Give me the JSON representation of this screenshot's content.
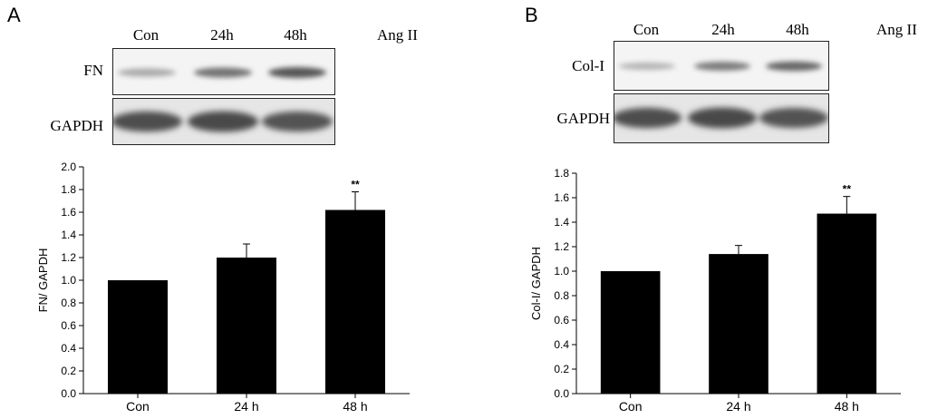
{
  "panels": [
    {
      "letter": "A",
      "treatment": "Ang II",
      "lanes": [
        "Con",
        "24h",
        "48h"
      ],
      "blots": [
        {
          "label": "FN",
          "band_intensity": [
            0.35,
            0.65,
            0.8
          ]
        },
        {
          "label": "GAPDH",
          "band_intensity": [
            0.85,
            0.88,
            0.82
          ]
        }
      ]
    },
    {
      "letter": "B",
      "treatment": "Ang II",
      "lanes": [
        "Con",
        "24h",
        "48h"
      ],
      "blots": [
        {
          "label": "Col-I",
          "band_intensity": [
            0.3,
            0.6,
            0.72
          ]
        },
        {
          "label": "GAPDH",
          "band_intensity": [
            0.85,
            0.88,
            0.82
          ]
        }
      ]
    }
  ],
  "chart_data": [
    {
      "type": "bar",
      "categories": [
        "Con",
        "24 h",
        "48 h"
      ],
      "values": [
        1.0,
        1.2,
        1.62
      ],
      "errors": [
        0.0,
        0.12,
        0.16
      ],
      "significance": [
        "",
        "",
        "**"
      ],
      "ylabel": "FN/ GAPDH",
      "xlabel": "",
      "title": "",
      "ylim": [
        0.0,
        2.0
      ],
      "yticks": [
        "0.0",
        "0.2",
        "0.4",
        "0.6",
        "0.8",
        "1.0",
        "1.2",
        "1.4",
        "1.6",
        "1.8",
        "2.0"
      ],
      "bar_color": "#000000",
      "grid": false
    },
    {
      "type": "bar",
      "categories": [
        "Con",
        "24 h",
        "48 h"
      ],
      "values": [
        1.0,
        1.14,
        1.47
      ],
      "errors": [
        0.0,
        0.07,
        0.14
      ],
      "significance": [
        "",
        "",
        "**"
      ],
      "ylabel": "Col-I/ GAPDH",
      "xlabel": "",
      "title": "",
      "ylim": [
        0.0,
        1.8
      ],
      "yticks": [
        "0.0",
        "0.2",
        "0.4",
        "0.6",
        "0.8",
        "1.0",
        "1.2",
        "1.4",
        "1.6",
        "1.8"
      ],
      "bar_color": "#000000",
      "grid": false
    }
  ]
}
